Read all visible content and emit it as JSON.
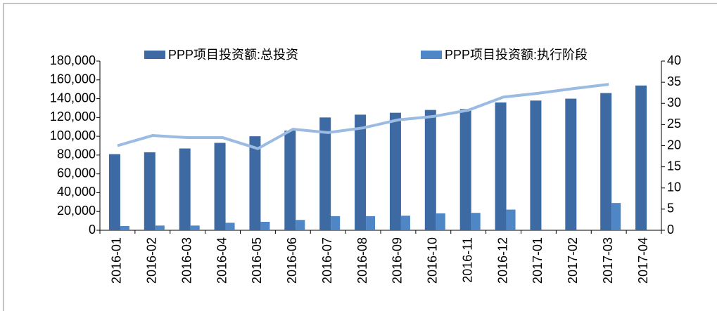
{
  "chart_data": {
    "type": "bar",
    "categories": [
      "2016-01",
      "2016-02",
      "2016-03",
      "2016-04",
      "2016-05",
      "2016-06",
      "2016-07",
      "2016-08",
      "2016-09",
      "2016-10",
      "2016-11",
      "2016-12",
      "2017-01",
      "2017-02",
      "2017-03",
      "2017-04"
    ],
    "series": [
      {
        "name": "PPP项目投资额:总投资",
        "color": "#3d6aa3",
        "values": [
          81000,
          83000,
          87000,
          93000,
          100000,
          106000,
          120000,
          123000,
          125000,
          128000,
          129000,
          136000,
          138000,
          140000,
          146000,
          154000
        ]
      },
      {
        "name": "PPP项目投资额:执行阶段",
        "color": "#4f86c6",
        "values": [
          4500,
          5000,
          5000,
          8000,
          9000,
          11000,
          15000,
          15000,
          15500,
          18000,
          18500,
          22000,
          null,
          null,
          29000,
          null
        ]
      },
      {
        "type": "line",
        "axis": "y2",
        "color": "#9bbbe3",
        "values": [
          20,
          22.4,
          21.9,
          21.9,
          19.3,
          23.9,
          23.1,
          24.2,
          26.1,
          26.9,
          28.4,
          31.5,
          32.4,
          33.5,
          34.5,
          null
        ]
      }
    ],
    "ylim": [
      0,
      180000
    ],
    "yticks": [
      0,
      {
        "value": 20000,
        "label": "20,000"
      },
      {
        "value": 40000,
        "label": "40,000"
      },
      {
        "value": 60000,
        "label": "60,000"
      },
      {
        "value": 80000,
        "label": "80,000"
      },
      {
        "value": 100000,
        "label": "100,000"
      },
      {
        "value": 120000,
        "label": "120,000"
      },
      {
        "value": 140000,
        "label": "140,000"
      },
      {
        "value": 160000,
        "label": "160,000"
      },
      {
        "value": 180000,
        "label": "180,000"
      }
    ],
    "y2lim": [
      0,
      40
    ],
    "y2ticks": [
      0,
      5,
      10,
      15,
      20,
      25,
      30,
      35,
      40
    ]
  }
}
